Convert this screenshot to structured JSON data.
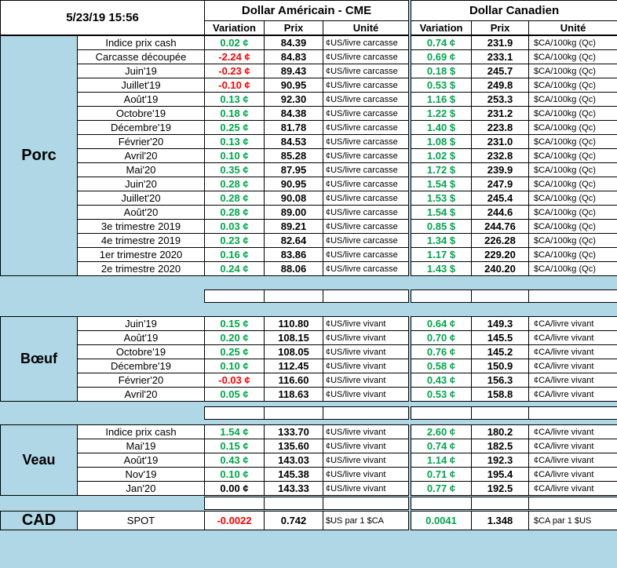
{
  "header": {
    "timestamp": "5/23/19 15:56",
    "us_title": "Dollar Américain - CME",
    "ca_title": "Dollar Canadien",
    "col_variation": "Variation",
    "col_prix": "Prix",
    "col_unite": "Unité"
  },
  "colors": {
    "background": "#AFD7E6",
    "positive": "#00A64C",
    "negative": "#FF0000",
    "price": "#000000"
  },
  "sections": [
    {
      "name": "Porc",
      "us_unit": "¢US/livre carcasse",
      "ca_unit": "$CA/100kg (Qc)",
      "rows": [
        {
          "label": "Indice prix cash",
          "us_var": "0.02 ¢",
          "us_prix": "84.39",
          "ca_var": "0.74 ¢",
          "ca_prix": "231.9"
        },
        {
          "label": "Carcasse découpée",
          "us_var": "-2.24 ¢",
          "us_prix": "84.83",
          "ca_var": "0.69 ¢",
          "ca_prix": "233.1"
        },
        {
          "label": "Juin'19",
          "us_var": "-0.23 ¢",
          "us_prix": "89.43",
          "ca_var": "0.18 $",
          "ca_prix": "245.7"
        },
        {
          "label": "Juillet'19",
          "us_var": "-0.10 ¢",
          "us_prix": "90.95",
          "ca_var": "0.53 $",
          "ca_prix": "249.8"
        },
        {
          "label": "Août'19",
          "us_var": "0.13 ¢",
          "us_prix": "92.30",
          "ca_var": "1.16 $",
          "ca_prix": "253.3"
        },
        {
          "label": "Octobre'19",
          "us_var": "0.18 ¢",
          "us_prix": "84.38",
          "ca_var": "1.22 $",
          "ca_prix": "231.2"
        },
        {
          "label": "Décembre'19",
          "us_var": "0.25 ¢",
          "us_prix": "81.78",
          "ca_var": "1.40 $",
          "ca_prix": "223.8"
        },
        {
          "label": "Février'20",
          "us_var": "0.13 ¢",
          "us_prix": "84.53",
          "ca_var": "1.08 $",
          "ca_prix": "231.0"
        },
        {
          "label": "Avril'20",
          "us_var": "0.10 ¢",
          "us_prix": "85.28",
          "ca_var": "1.02 $",
          "ca_prix": "232.8"
        },
        {
          "label": "Mai'20",
          "us_var": "0.35 ¢",
          "us_prix": "87.95",
          "ca_var": "1.72 $",
          "ca_prix": "239.9"
        },
        {
          "label": "Juin'20",
          "us_var": "0.28 ¢",
          "us_prix": "90.95",
          "ca_var": "1.54 $",
          "ca_prix": "247.9"
        },
        {
          "label": "Juillet'20",
          "us_var": "0.28 ¢",
          "us_prix": "90.08",
          "ca_var": "1.53 $",
          "ca_prix": "245.4"
        },
        {
          "label": "Août'20",
          "us_var": "0.28 ¢",
          "us_prix": "89.00",
          "ca_var": "1.54 $",
          "ca_prix": "244.6"
        },
        {
          "label": "3e trimestre 2019",
          "us_var": "0.03 ¢",
          "us_prix": "89.21",
          "ca_var": "0.85 $",
          "ca_prix": "244.76"
        },
        {
          "label": "4e trimestre 2019",
          "us_var": "0.23 ¢",
          "us_prix": "82.64",
          "ca_var": "1.34 $",
          "ca_prix": "226.28"
        },
        {
          "label": "1er trimestre 2020",
          "us_var": "0.16 ¢",
          "us_prix": "83.86",
          "ca_var": "1.17 $",
          "ca_prix": "229.20"
        },
        {
          "label": "2e trimestre 2020",
          "us_var": "0.24 ¢",
          "us_prix": "88.06",
          "ca_var": "1.43 $",
          "ca_prix": "240.20"
        }
      ]
    },
    {
      "name": "Bœuf",
      "us_unit": "¢US/livre vivant",
      "ca_unit": "¢CA/livre vivant",
      "rows": [
        {
          "label": "Juin'19",
          "us_var": "0.15 ¢",
          "us_prix": "110.80",
          "ca_var": "0.64 ¢",
          "ca_prix": "149.3"
        },
        {
          "label": "Août'19",
          "us_var": "0.20 ¢",
          "us_prix": "108.15",
          "ca_var": "0.70 ¢",
          "ca_prix": "145.5"
        },
        {
          "label": "Octobre'19",
          "us_var": "0.25 ¢",
          "us_prix": "108.05",
          "ca_var": "0.76 ¢",
          "ca_prix": "145.2"
        },
        {
          "label": "Décembre'19",
          "us_var": "0.10 ¢",
          "us_prix": "112.45",
          "ca_var": "0.58 ¢",
          "ca_prix": "150.9"
        },
        {
          "label": "Février'20",
          "us_var": "-0.03 ¢",
          "us_prix": "116.60",
          "ca_var": "0.43 ¢",
          "ca_prix": "156.3"
        },
        {
          "label": "Avril'20",
          "us_var": "0.05 ¢",
          "us_prix": "118.63",
          "ca_var": "0.53 ¢",
          "ca_prix": "158.8"
        }
      ]
    },
    {
      "name": "Veau",
      "us_unit": "¢US/livre vivant",
      "ca_unit": "¢CA/livre vivant",
      "rows": [
        {
          "label": "Indice prix cash",
          "us_var": "1.54 ¢",
          "us_prix": "133.70",
          "ca_var": "2.60 ¢",
          "ca_prix": "180.2"
        },
        {
          "label": "Mai'19",
          "us_var": "0.15 ¢",
          "us_prix": "135.60",
          "ca_var": "0.74 ¢",
          "ca_prix": "182.5"
        },
        {
          "label": "Août'19",
          "us_var": "0.43 ¢",
          "us_prix": "143.03",
          "ca_var": "1.14 ¢",
          "ca_prix": "192.3"
        },
        {
          "label": "Nov'19",
          "us_var": "0.10 ¢",
          "us_prix": "145.38",
          "ca_var": "0.71 ¢",
          "ca_prix": "195.4"
        },
        {
          "label": "Jan'20",
          "us_var": "0.00 ¢",
          "us_prix": "143.33",
          "ca_var": "0.77 ¢",
          "ca_prix": "192.5"
        }
      ]
    }
  ],
  "spot": {
    "name": "CAD",
    "row_label": "SPOT",
    "us_var": "-0.0022",
    "us_prix": "0.742",
    "us_unit": "$US par 1 $CA",
    "ca_var": "0.0041",
    "ca_prix": "1.348",
    "ca_unit": "$CA par 1 $US"
  }
}
